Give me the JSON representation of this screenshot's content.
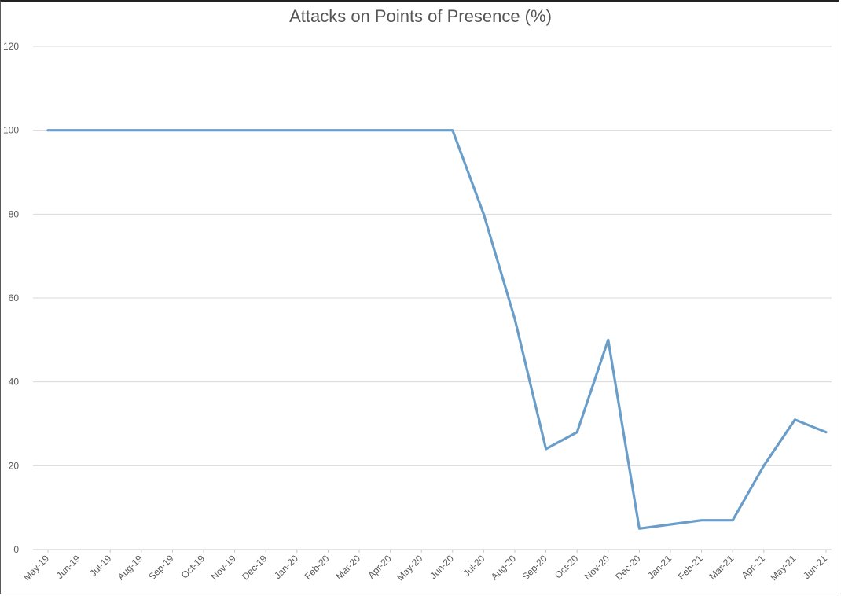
{
  "chart_data": {
    "type": "line",
    "title": "Attacks on Points of Presence (%)",
    "xlabel": "",
    "ylabel": "",
    "ylim": [
      0,
      120
    ],
    "yticks": [
      0,
      20,
      40,
      60,
      80,
      100,
      120
    ],
    "grid": true,
    "legend": "none",
    "categories": [
      "May-19",
      "Jun-19",
      "Jul-19",
      "Aug-19",
      "Sep-19",
      "Oct-19",
      "Nov-19",
      "Dec-19",
      "Jan-20",
      "Feb-20",
      "Mar-20",
      "Apr-20",
      "May-20",
      "Jun-20",
      "Jul-20",
      "Aug-20",
      "Sep-20",
      "Oct-20",
      "Nov-20",
      "Dec-20",
      "Jan-21",
      "Feb-21",
      "Mar-21",
      "Apr-21",
      "May-21",
      "Jun-21"
    ],
    "series": [
      {
        "color": "#6a9ec9",
        "values": [
          100,
          100,
          100,
          100,
          100,
          100,
          100,
          100,
          100,
          100,
          100,
          100,
          100,
          100,
          80,
          55,
          24,
          28,
          50,
          5,
          6,
          7,
          7,
          20,
          31,
          28
        ]
      }
    ]
  }
}
